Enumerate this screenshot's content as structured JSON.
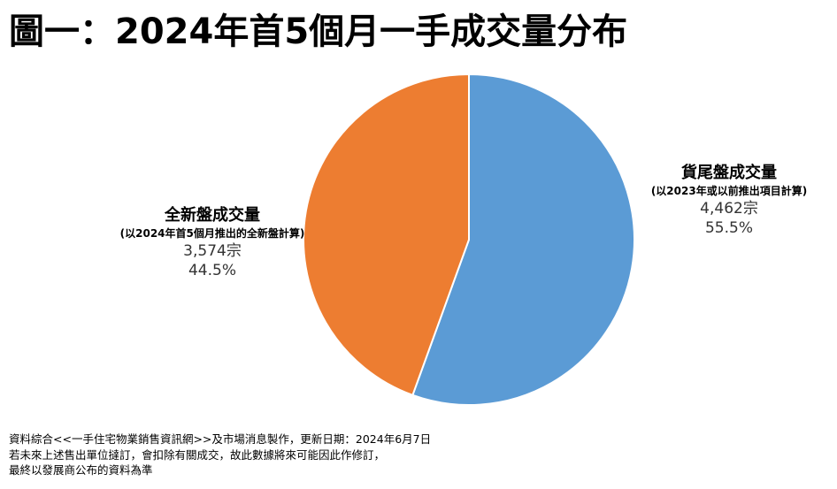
{
  "title": "圖一：2024年首5個月一手成交量分布",
  "colors": {
    "new_units": "#ED7D31",
    "existing_units": "#5B9BD5",
    "slice_border": "#ffffff"
  },
  "labels": {
    "left": {
      "name": "全新盤成交量",
      "note": "(以2024年首5個月推出的全新盤計算)",
      "count": "3,574宗",
      "percent": "44.5%"
    },
    "right": {
      "name": "貨尾盤成交量",
      "note": "(以2023年或以前推出項目計算)",
      "count": "4,462宗",
      "percent": "55.5%"
    }
  },
  "footer": {
    "line1": "資料綜合<<一手住宅物業銷售資訊網>>及市場消息製作，更新日期：2024年6月7日",
    "line2": "若未來上述售出單位撻訂，會扣除有關成交，故此數據將來可能因此作修訂，",
    "line3": "最終以發展商公布的資料為準"
  },
  "chart_data": {
    "type": "pie",
    "title": "圖一：2024年首5個月一手成交量分布",
    "start": "12 o'clock",
    "direction": "clockwise",
    "slices": [
      {
        "label": "貨尾盤成交量",
        "value": 4462,
        "percent": 55.5,
        "color": "#5B9BD5"
      },
      {
        "label": "全新盤成交量",
        "value": 3574,
        "percent": 44.5,
        "color": "#ED7D31"
      }
    ]
  }
}
